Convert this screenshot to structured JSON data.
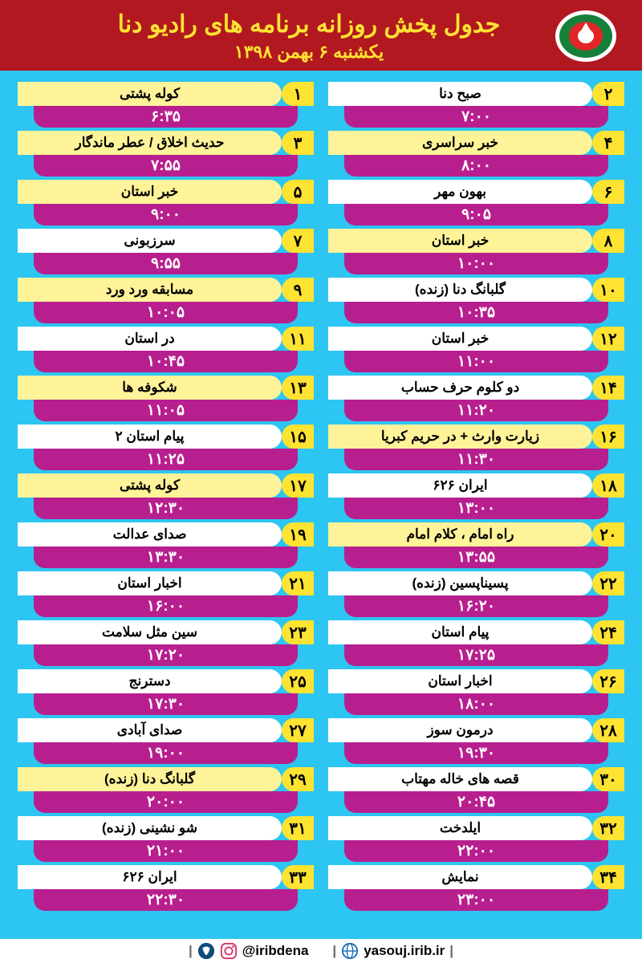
{
  "header": {
    "title": "جدول پخش روزانه برنامه های رادیو دنا",
    "date": "یکشنبه ۶ بهمن  ۱۳۹۸"
  },
  "colors": {
    "page_bg": "#2dc5f2",
    "header_bg": "#b2181f",
    "header_text": "#ffe333",
    "badge_bg": "#ffe333",
    "name_bg": "#ffffff",
    "name_highlight_bg": "#fff399",
    "time_bg": "#b81f8e",
    "time_text": "#ffffff",
    "footer_bg": "#ffffff"
  },
  "logo": {
    "outer": "#16803a",
    "inner": "#e42528",
    "accent": "#ffffff"
  },
  "programs_right": [
    {
      "n": "۱",
      "name": "کوله پشتی",
      "time": "۶:۳۵",
      "hl": true
    },
    {
      "n": "۳",
      "name": "حدیث اخلاق / عطر ماندگار",
      "time": "۷:۵۵",
      "hl": true
    },
    {
      "n": "۵",
      "name": "خبر استان",
      "time": "۹:۰۰",
      "hl": true
    },
    {
      "n": "۷",
      "name": "سرزبونی",
      "time": "۹:۵۵",
      "hl": false
    },
    {
      "n": "۹",
      "name": "مسابقه ورد ورد",
      "time": "۱۰:۰۵",
      "hl": true
    },
    {
      "n": "۱۱",
      "name": "در استان",
      "time": "۱۰:۴۵",
      "hl": false
    },
    {
      "n": "۱۳",
      "name": "شکوفه ها",
      "time": "۱۱:۰۵",
      "hl": true
    },
    {
      "n": "۱۵",
      "name": "پیام استان ۲",
      "time": "۱۱:۲۵",
      "hl": false
    },
    {
      "n": "۱۷",
      "name": "کوله پشتی",
      "time": "۱۲:۳۰",
      "hl": true
    },
    {
      "n": "۱۹",
      "name": "صدای عدالت",
      "time": "۱۳:۳۰",
      "hl": false
    },
    {
      "n": "۲۱",
      "name": "اخبار استان",
      "time": "۱۶:۰۰",
      "hl": false
    },
    {
      "n": "۲۳",
      "name": "سین مثل سلامت",
      "time": "۱۷:۲۰",
      "hl": false
    },
    {
      "n": "۲۵",
      "name": "دسترنج",
      "time": "۱۷:۳۰",
      "hl": false
    },
    {
      "n": "۲۷",
      "name": "صدای آبادی",
      "time": "۱۹:۰۰",
      "hl": false
    },
    {
      "n": "۲۹",
      "name": "گلبانگ دنا (زنده)",
      "time": "۲۰:۰۰",
      "hl": true
    },
    {
      "n": "۳۱",
      "name": "شو نشینی (زنده)",
      "time": "۲۱:۰۰",
      "hl": false
    },
    {
      "n": "۳۳",
      "name": "ایران ۶۲۶",
      "time": "۲۲:۳۰",
      "hl": false
    }
  ],
  "programs_left": [
    {
      "n": "۲",
      "name": "صبح دنا",
      "time": "۷:۰۰",
      "hl": false
    },
    {
      "n": "۴",
      "name": "خبر سراسری",
      "time": "۸:۰۰",
      "hl": true
    },
    {
      "n": "۶",
      "name": "بهون مهر",
      "time": "۹:۰۵",
      "hl": false
    },
    {
      "n": "۸",
      "name": "خبر استان",
      "time": "۱۰:۰۰",
      "hl": true
    },
    {
      "n": "۱۰",
      "name": "گلبانگ دنا (زنده)",
      "time": "۱۰:۳۵",
      "hl": false
    },
    {
      "n": "۱۲",
      "name": "خبر استان",
      "time": "۱۱:۰۰",
      "hl": false
    },
    {
      "n": "۱۴",
      "name": "دو کلوم حرف حساب",
      "time": "۱۱:۲۰",
      "hl": false
    },
    {
      "n": "۱۶",
      "name": "زیارت وارث + در حریم کبریا",
      "time": "۱۱:۳۰",
      "hl": true
    },
    {
      "n": "۱۸",
      "name": "ایران ۶۲۶",
      "time": "۱۳:۰۰",
      "hl": false
    },
    {
      "n": "۲۰",
      "name": "راه امام ، کلام امام",
      "time": "۱۳:۵۵",
      "hl": true
    },
    {
      "n": "۲۲",
      "name": "پسیناپسین (زنده)",
      "time": "۱۶:۲۰",
      "hl": false
    },
    {
      "n": "۲۴",
      "name": "پیام استان",
      "time": "۱۷:۲۵",
      "hl": false
    },
    {
      "n": "۲۶",
      "name": "اخبار استان",
      "time": "۱۸:۰۰",
      "hl": false
    },
    {
      "n": "۲۸",
      "name": "درمون سوز",
      "time": "۱۹:۳۰",
      "hl": false
    },
    {
      "n": "۳۰",
      "name": "قصه های خاله مهتاب",
      "time": "۲۰:۴۵",
      "hl": false
    },
    {
      "n": "۳۲",
      "name": "ایلدخت",
      "time": "۲۲:۰۰",
      "hl": false
    },
    {
      "n": "۳۴",
      "name": "نمایش",
      "time": "۲۳:۰۰",
      "hl": false
    }
  ],
  "footer": {
    "social": "@iribdena",
    "website": "yasouj.irib.ir"
  }
}
